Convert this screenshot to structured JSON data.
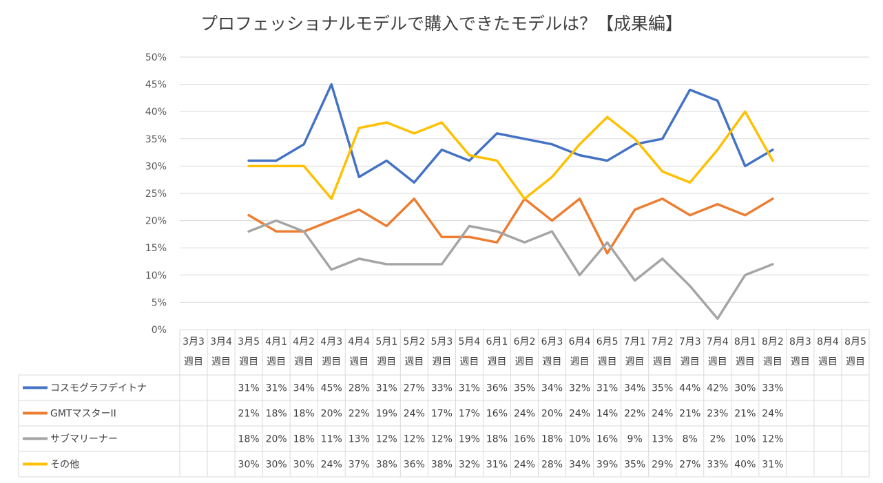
{
  "chart_data": {
    "type": "line",
    "title": "プロフェッショナルモデルで購入できたモデルは？【成果編】",
    "xlabel": "",
    "ylabel": "",
    "ylim": [
      0,
      50
    ],
    "yticks": [
      "0%",
      "5%",
      "10%",
      "15%",
      "20%",
      "25%",
      "30%",
      "35%",
      "40%",
      "45%",
      "50%"
    ],
    "grid": true,
    "legend": "data-table",
    "categories": [
      [
        "3月3",
        "週目"
      ],
      [
        "3月4",
        "週目"
      ],
      [
        "3月5",
        "週目"
      ],
      [
        "4月1",
        "週目"
      ],
      [
        "4月2",
        "週目"
      ],
      [
        "4月3",
        "週目"
      ],
      [
        "4月4",
        "週目"
      ],
      [
        "5月1",
        "週目"
      ],
      [
        "5月2",
        "週目"
      ],
      [
        "5月3",
        "週目"
      ],
      [
        "5月4",
        "週目"
      ],
      [
        "6月1",
        "週目"
      ],
      [
        "6月2",
        "週目"
      ],
      [
        "6月3",
        "週目"
      ],
      [
        "6月4",
        "週目"
      ],
      [
        "6月5",
        "週目"
      ],
      [
        "7月1",
        "週目"
      ],
      [
        "7月2",
        "週目"
      ],
      [
        "7月3",
        "週目"
      ],
      [
        "7月4",
        "週目"
      ],
      [
        "8月1",
        "週目"
      ],
      [
        "8月2",
        "週目"
      ],
      [
        "8月3",
        "週目"
      ],
      [
        "8月4",
        "週目"
      ],
      [
        "8月5",
        "週目"
      ]
    ],
    "series": [
      {
        "name": "コスモグラフデイトナ",
        "color": "#4472C4",
        "values": [
          null,
          null,
          31,
          31,
          34,
          45,
          28,
          31,
          27,
          33,
          31,
          36,
          35,
          34,
          32,
          31,
          34,
          35,
          44,
          42,
          30,
          33,
          null,
          null,
          null
        ]
      },
      {
        "name": "GMTマスターII",
        "color": "#ED7D31",
        "values": [
          null,
          null,
          21,
          18,
          18,
          20,
          22,
          19,
          24,
          17,
          17,
          16,
          24,
          20,
          24,
          14,
          22,
          24,
          21,
          23,
          21,
          24,
          null,
          null,
          null
        ]
      },
      {
        "name": "サブマリーナー",
        "color": "#A5A5A5",
        "values": [
          null,
          null,
          18,
          20,
          18,
          11,
          13,
          12,
          12,
          12,
          19,
          18,
          16,
          18,
          10,
          16,
          9,
          13,
          8,
          2,
          10,
          12,
          null,
          null,
          null
        ]
      },
      {
        "name": "その他",
        "color": "#FFC000",
        "values": [
          null,
          null,
          30,
          30,
          30,
          24,
          37,
          38,
          36,
          38,
          32,
          31,
          24,
          28,
          34,
          39,
          35,
          29,
          27,
          33,
          40,
          31,
          null,
          null,
          null
        ]
      }
    ]
  }
}
